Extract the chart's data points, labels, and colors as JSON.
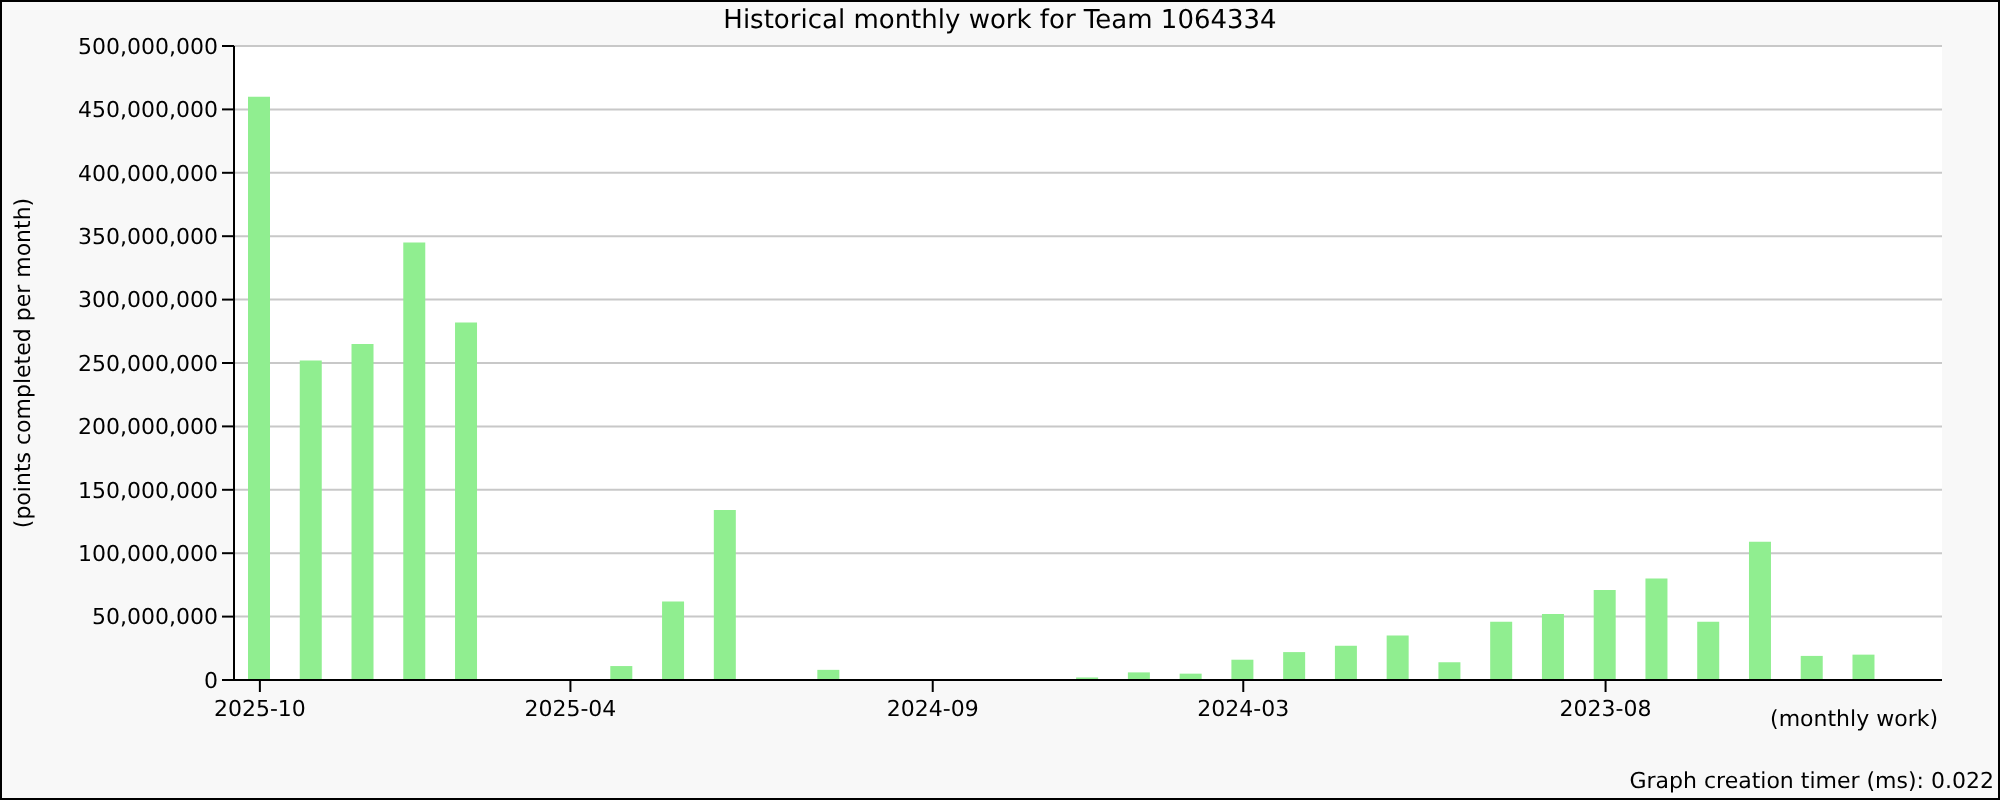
{
  "chart_data": {
    "type": "bar",
    "title": "Historical monthly work for Team 1064334",
    "xlabel": "(monthly work)",
    "ylabel": "(points completed per month)",
    "categories": [
      "2025-10",
      null,
      null,
      null,
      null,
      null,
      "2025-04",
      null,
      null,
      null,
      null,
      null,
      null,
      "2024-09",
      null,
      null,
      null,
      null,
      null,
      "2024-03",
      null,
      null,
      null,
      null,
      null,
      null,
      "2023-08",
      null,
      null,
      null,
      null,
      null,
      null
    ],
    "values": [
      460000000,
      252000000,
      265000000,
      345000000,
      282000000,
      0,
      0,
      11000000,
      62000000,
      134000000,
      0,
      8000000,
      0,
      0,
      0,
      0,
      2000000,
      6000000,
      5000000,
      16000000,
      22000000,
      27000000,
      35000000,
      14000000,
      46000000,
      52000000,
      71000000,
      80000000,
      46000000,
      109000000,
      19000000,
      20000000,
      0
    ],
    "color": "#90ee90",
    "ylim": [
      0,
      500000000
    ],
    "yticks": [
      {
        "value": 0,
        "label": "0"
      },
      {
        "value": 50000000,
        "label": "50,000,000"
      },
      {
        "value": 100000000,
        "label": "100,000,000"
      },
      {
        "value": 150000000,
        "label": "150,000,000"
      },
      {
        "value": 200000000,
        "label": "200,000,000"
      },
      {
        "value": 250000000,
        "label": "250,000,000"
      },
      {
        "value": 300000000,
        "label": "300,000,000"
      },
      {
        "value": 350000000,
        "label": "350,000,000"
      },
      {
        "value": 400000000,
        "label": "400,000,000"
      },
      {
        "value": 450000000,
        "label": "450,000,000"
      },
      {
        "value": 500000000,
        "label": "500,000,000"
      }
    ],
    "grid": "y",
    "annotations": [
      "Graph creation timer (ms): 0.022"
    ]
  }
}
